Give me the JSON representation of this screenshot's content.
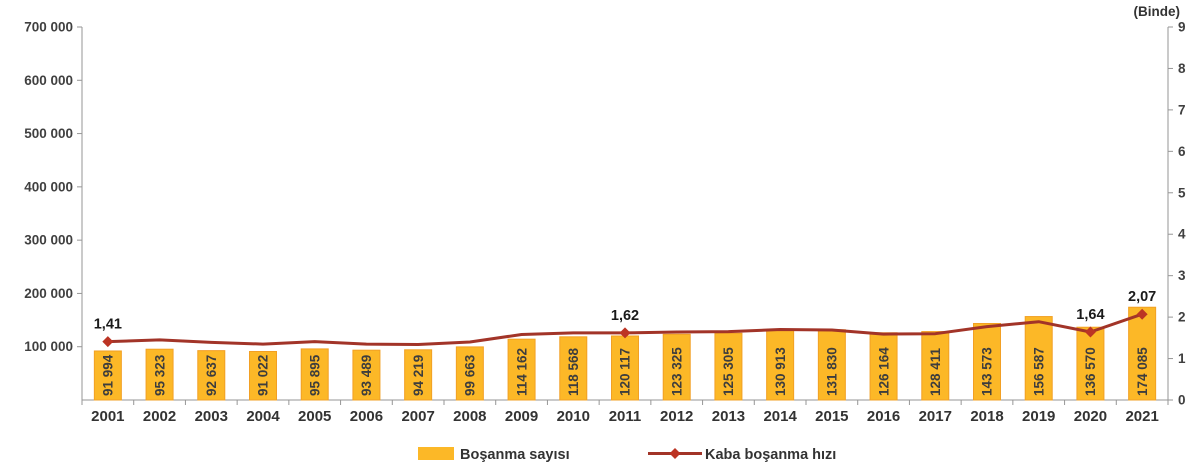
{
  "chart_data": {
    "type": "combo-bar-line",
    "title": "",
    "background": "#FFFFFF",
    "grid": false,
    "legend_position": "bottom",
    "categories": [
      "2001",
      "2002",
      "2003",
      "2004",
      "2005",
      "2006",
      "2007",
      "2008",
      "2009",
      "2010",
      "2011",
      "2012",
      "2013",
      "2014",
      "2015",
      "2016",
      "2017",
      "2018",
      "2019",
      "2020",
      "2021"
    ],
    "series": [
      {
        "name": "Boşanma sayısı",
        "type": "bar",
        "axis": "left",
        "color": "#FCB827",
        "border_color": "#F2A024",
        "values": [
          91994,
          95323,
          92637,
          91022,
          95895,
          93489,
          94219,
          99663,
          114162,
          118568,
          120117,
          123325,
          125305,
          130913,
          131830,
          126164,
          128411,
          143573,
          156587,
          136570,
          174085
        ],
        "labels": [
          "91 994",
          "95 323",
          "92 637",
          "91 022",
          "95 895",
          "93 489",
          "94 219",
          "99 663",
          "114 162",
          "118 568",
          "120 117",
          "123 325",
          "125 305",
          "130 913",
          "131 830",
          "126 164",
          "128 411",
          "143 573",
          "156 587",
          "136 570",
          "174 085"
        ]
      },
      {
        "name": "Kaba boşanma hızı",
        "type": "line",
        "axis": "right",
        "color": "#A23428",
        "marker_color": "#BC3424",
        "values": [
          1.41,
          1.45,
          1.39,
          1.35,
          1.41,
          1.35,
          1.34,
          1.4,
          1.58,
          1.62,
          1.62,
          1.64,
          1.65,
          1.7,
          1.69,
          1.59,
          1.6,
          1.77,
          1.89,
          1.64,
          2.07
        ],
        "annotations": [
          {
            "index": 0,
            "label": "1,41"
          },
          {
            "index": 10,
            "label": "1,62"
          },
          {
            "index": 19,
            "label": "1,64"
          },
          {
            "index": 20,
            "label": "2,07"
          }
        ]
      }
    ],
    "left_axis": {
      "min": 0,
      "max": 700000,
      "ticks": [
        {
          "label": "700 000",
          "value": 700000
        },
        {
          "label": "600 000",
          "value": 600000
        },
        {
          "label": "500 000",
          "value": 500000
        },
        {
          "label": "400 000",
          "value": 400000
        },
        {
          "label": "300 000",
          "value": 300000
        },
        {
          "label": "200 000",
          "value": 200000
        },
        {
          "label": "100 000",
          "value": 100000
        }
      ]
    },
    "right_axis": {
      "title": "(Binde)",
      "min": 0,
      "max": 9,
      "ticks": [
        {
          "label": "9",
          "value": 9
        },
        {
          "label": "8",
          "value": 8
        },
        {
          "label": "7",
          "value": 7
        },
        {
          "label": "6",
          "value": 6
        },
        {
          "label": "5",
          "value": 5
        },
        {
          "label": "4",
          "value": 4
        },
        {
          "label": "3",
          "value": 3
        },
        {
          "label": "2",
          "value": 2
        },
        {
          "label": "1",
          "value": 1
        },
        {
          "label": "0",
          "value": 0
        }
      ]
    }
  }
}
